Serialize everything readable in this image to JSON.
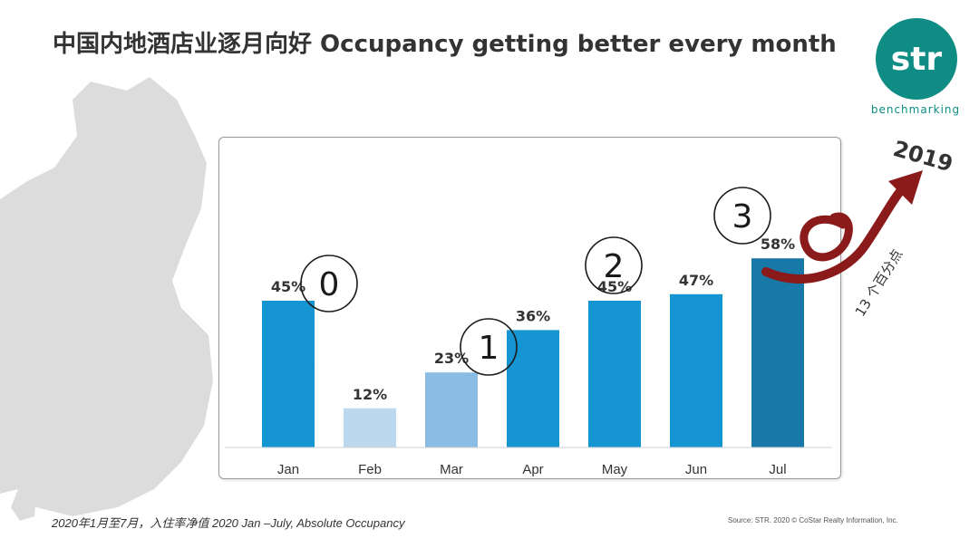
{
  "header": {
    "title": "中国内地酒店业逐月向好 Occupancy getting better every month"
  },
  "logo": {
    "mark": "str",
    "sub": "benchmarking"
  },
  "annotations": {
    "year": "2019",
    "points": "13 个百分点",
    "step_markers": [
      "0",
      "1",
      "2",
      "3"
    ]
  },
  "footer": {
    "left": "2020年1月至7月，入住率净值 2020 Jan –July, Absolute Occupancy",
    "right": "Source: STR. 2020 © CoStar Realty Information, Inc."
  },
  "colors": {
    "brand": "#0f8c83",
    "bar_main": "#1596d2",
    "bar_light": "#bcd8ee",
    "bar_mid": "#8bbce3",
    "bar_dark": "#1878a8",
    "arrow": "#8b1a1a"
  },
  "chart_data": {
    "type": "bar",
    "categories": [
      "Jan",
      "Feb",
      "Mar",
      "Apr",
      "May",
      "Jun",
      "Jul"
    ],
    "values": [
      45,
      12,
      23,
      36,
      45,
      47,
      58
    ],
    "data_labels": [
      "45%",
      "12%",
      "23%",
      "36%",
      "45%",
      "47%",
      "58%"
    ],
    "bar_colors": [
      "#1596d2",
      "#bcd8ee",
      "#8bbce3",
      "#1596d2",
      "#1596d2",
      "#1596d2",
      "#1878a8"
    ],
    "title": "",
    "xlabel": "",
    "ylabel": "",
    "ylim": [
      0,
      65
    ],
    "grid": false,
    "legend": "none"
  }
}
